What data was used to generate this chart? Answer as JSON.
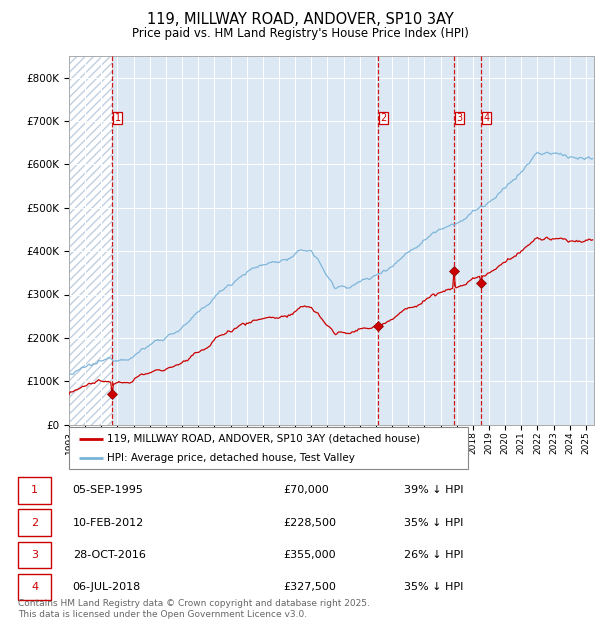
{
  "title": "119, MILLWAY ROAD, ANDOVER, SP10 3AY",
  "subtitle": "Price paid vs. HM Land Registry's House Price Index (HPI)",
  "title_fontsize": 10.5,
  "subtitle_fontsize": 8.5,
  "background_color": "#ffffff",
  "plot_bg_color": "#dce9f5",
  "hatch_color": "#b0c4de",
  "grid_color": "#ffffff",
  "ylim": [
    0,
    850000
  ],
  "yticks": [
    0,
    100000,
    200000,
    300000,
    400000,
    500000,
    600000,
    700000,
    800000
  ],
  "xlim_start": 1993.0,
  "xlim_end": 2025.5,
  "sale_color": "#cc0000",
  "hpi_color": "#7ab3d8",
  "vline_color": "#cc0000",
  "purchases": [
    {
      "label": "1",
      "date_num": 1995.68,
      "price": 70000
    },
    {
      "label": "2",
      "date_num": 2012.11,
      "price": 228500
    },
    {
      "label": "3",
      "date_num": 2016.83,
      "price": 355000
    },
    {
      "label": "4",
      "date_num": 2018.51,
      "price": 327500
    }
  ],
  "legend_sale_label": "119, MILLWAY ROAD, ANDOVER, SP10 3AY (detached house)",
  "legend_hpi_label": "HPI: Average price, detached house, Test Valley",
  "table_rows": [
    {
      "num": "1",
      "date": "05-SEP-1995",
      "price": "£70,000",
      "pct": "39% ↓ HPI"
    },
    {
      "num": "2",
      "date": "10-FEB-2012",
      "price": "£228,500",
      "pct": "35% ↓ HPI"
    },
    {
      "num": "3",
      "date": "28-OCT-2016",
      "price": "£355,000",
      "pct": "26% ↓ HPI"
    },
    {
      "num": "4",
      "date": "06-JUL-2018",
      "price": "£327,500",
      "pct": "35% ↓ HPI"
    }
  ],
  "footer": "Contains HM Land Registry data © Crown copyright and database right 2025.\nThis data is licensed under the Open Government Licence v3.0."
}
